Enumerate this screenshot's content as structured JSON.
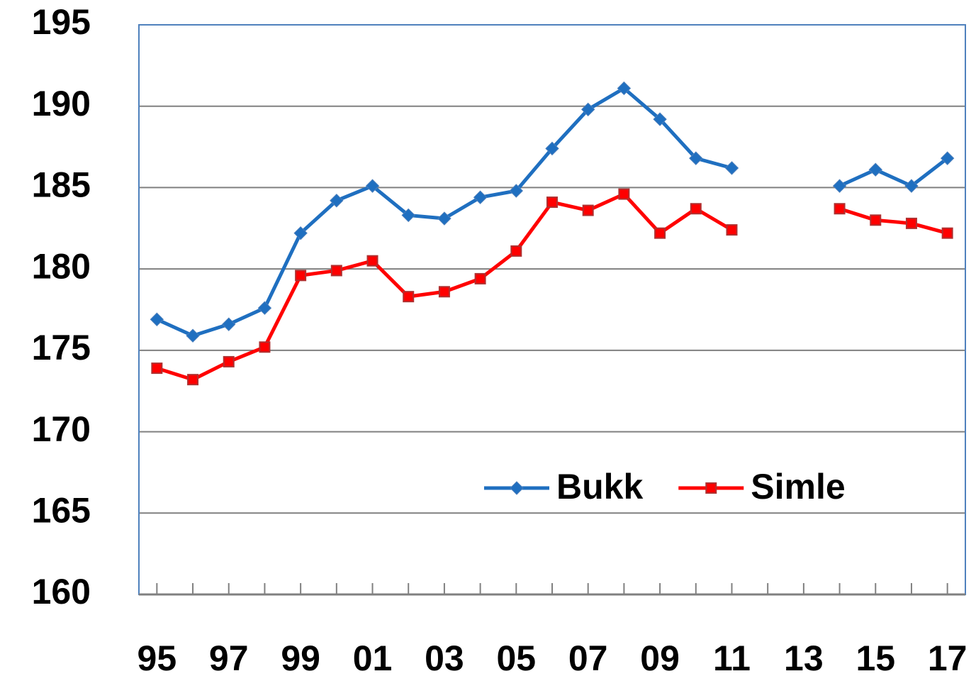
{
  "chart_data": {
    "type": "line",
    "categories": [
      "95",
      null,
      "97",
      null,
      "99",
      null,
      "01",
      null,
      "03",
      null,
      "05",
      null,
      "07",
      null,
      "09",
      null,
      "11",
      null,
      "13",
      null,
      "15",
      null,
      "17"
    ],
    "series": [
      {
        "name": "Bukk",
        "color": "#1f6fc0",
        "marker": "diamond",
        "values": [
          176.9,
          175.9,
          176.6,
          177.6,
          182.2,
          184.2,
          185.1,
          183.3,
          183.1,
          184.4,
          184.8,
          187.4,
          189.8,
          191.1,
          189.2,
          186.8,
          186.2,
          null,
          null,
          185.1,
          186.1,
          185.1,
          186.8
        ]
      },
      {
        "name": "Simle",
        "color": "#ff0000",
        "marker": "square",
        "values": [
          173.9,
          173.2,
          174.3,
          175.2,
          179.6,
          179.9,
          180.5,
          178.3,
          178.6,
          179.4,
          181.1,
          184.1,
          183.6,
          184.6,
          182.2,
          183.7,
          182.4,
          null,
          null,
          183.7,
          183.0,
          182.8,
          182.2
        ]
      }
    ],
    "ylim": [
      160,
      195
    ],
    "yticks": [
      160,
      165,
      170,
      175,
      180,
      185,
      190,
      195
    ],
    "grid": true,
    "legend": "lower right"
  }
}
